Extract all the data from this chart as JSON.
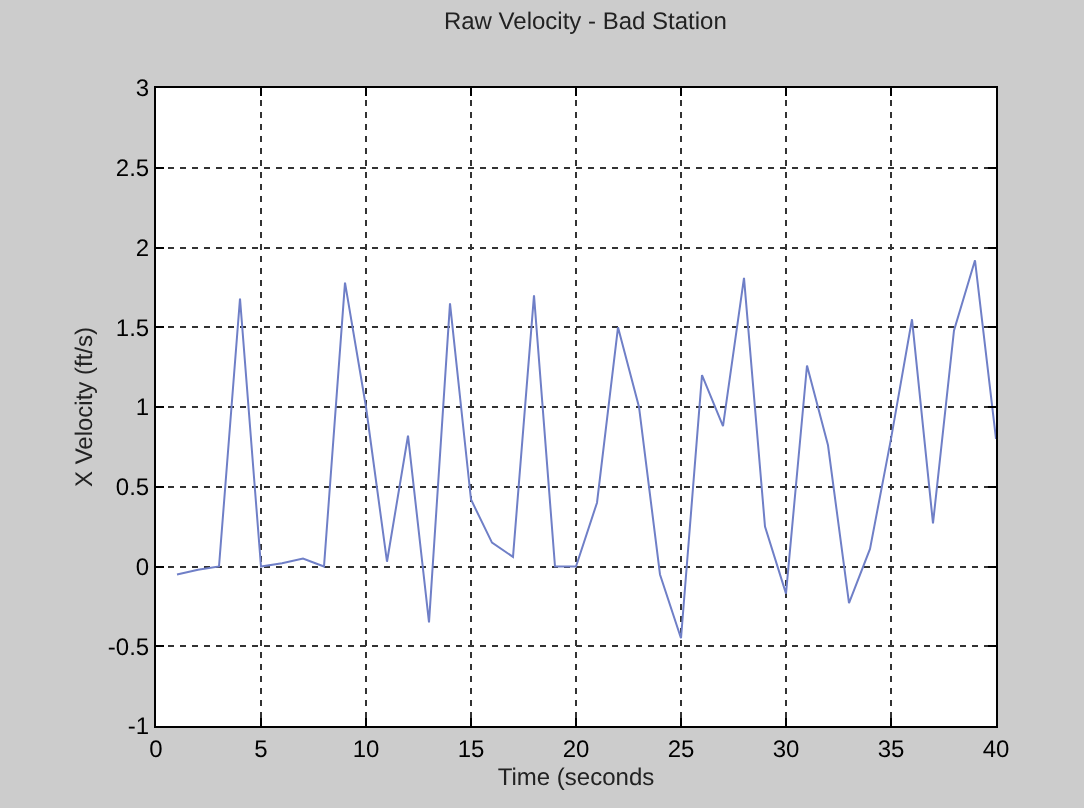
{
  "chart_data": {
    "type": "line",
    "title": "Raw Velocity - Bad Station",
    "xlabel": "Time (seconds",
    "ylabel": "X Velocity (ft/s)",
    "x": [
      1,
      2,
      3,
      4,
      5,
      6,
      7,
      8,
      9,
      10,
      11,
      12,
      13,
      14,
      15,
      16,
      17,
      18,
      19,
      20,
      21,
      22,
      23,
      24,
      25,
      26,
      27,
      28,
      29,
      30,
      31,
      32,
      33,
      34,
      35,
      36,
      37,
      38,
      39,
      40
    ],
    "series": [
      {
        "color": "#6f7fc7",
        "values": [
          -0.05,
          -0.02,
          0,
          1.68,
          0,
          0.02,
          0.05,
          0,
          1.78,
          1.0,
          0.03,
          0.82,
          -0.35,
          1.65,
          0.42,
          0.15,
          0.06,
          1.7,
          0,
          0,
          0.4,
          1.5,
          1.0,
          -0.05,
          -0.45,
          1.2,
          0.88,
          1.81,
          0.25,
          -0.17,
          1.26,
          0.76,
          -0.23,
          0.11,
          0.8,
          1.55,
          0.27,
          1.48,
          1.92,
          0.8
        ]
      }
    ],
    "xlim": [
      0,
      40
    ],
    "xticks": [
      0,
      5,
      10,
      15,
      20,
      25,
      30,
      35,
      40
    ],
    "ylim": [
      -1,
      3
    ],
    "yticks": [
      -1,
      -0.5,
      0,
      0.5,
      1,
      1.5,
      2,
      2.5,
      3
    ],
    "grid": true,
    "line_style": "solid",
    "marker": "none"
  }
}
